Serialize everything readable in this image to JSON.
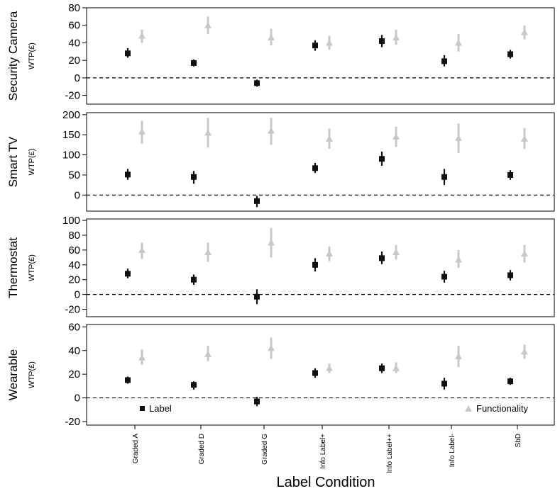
{
  "colors": {
    "label": "#111111",
    "functionality": "#c8c8c8"
  },
  "chart_data": {
    "type": "scatter",
    "xlabel": "Label Condition",
    "categories": [
      "Graded A",
      "Graded D",
      "Graded G",
      "Info Label+",
      "Info Label++",
      "Info Label-",
      "SbD"
    ],
    "legend": {
      "placement": "bottom",
      "items": [
        "Label",
        "Functionality"
      ]
    },
    "panels": [
      {
        "name": "Security Camera",
        "ylabel": "WTP(£)",
        "ylim": [
          -30,
          80
        ],
        "yticks": [
          -20,
          0,
          20,
          40,
          60,
          80
        ],
        "series": [
          {
            "name": "Label",
            "values": [
              28,
              17,
              -6,
              37,
              42,
              19,
              27
            ],
            "lower": [
              23,
              13,
              -10,
              31,
              35,
              13,
              22
            ],
            "upper": [
              34,
              21,
              -2,
              43,
              49,
              26,
              32
            ]
          },
          {
            "name": "Functionality",
            "values": [
              48,
              60,
              46,
              40,
              46,
              40,
              52
            ],
            "lower": [
              40,
              50,
              37,
              32,
              38,
              30,
              44
            ],
            "upper": [
              55,
              70,
              56,
              48,
              55,
              50,
              60
            ]
          }
        ]
      },
      {
        "name": "Smart TV",
        "ylabel": "WTP(£)",
        "ylim": [
          -40,
          205
        ],
        "yticks": [
          0,
          50,
          100,
          150,
          200
        ],
        "series": [
          {
            "name": "Label",
            "values": [
              51,
              45,
              -15,
              67,
              90,
              45,
              50
            ],
            "lower": [
              38,
              28,
              -30,
              55,
              73,
              25,
              38
            ],
            "upper": [
              65,
              60,
              -2,
              80,
              108,
              65,
              62
            ]
          },
          {
            "name": "Functionality",
            "values": [
              158,
              155,
              160,
              140,
              145,
              142,
              140
            ],
            "lower": [
              127,
              118,
              125,
              115,
              120,
              105,
              115
            ],
            "upper": [
              185,
              192,
              192,
              165,
              170,
              178,
              167
            ]
          }
        ]
      },
      {
        "name": "Thermostat",
        "ylabel": "WTP(£)",
        "ylim": [
          -30,
          102
        ],
        "yticks": [
          -20,
          0,
          20,
          40,
          60,
          80,
          100
        ],
        "series": [
          {
            "name": "Label",
            "values": [
              28,
              20,
              -3,
              40,
              49,
              24,
              26
            ],
            "lower": [
              22,
              13,
              -13,
              31,
              41,
              16,
              19
            ],
            "upper": [
              35,
              27,
              7,
              49,
              58,
              32,
              33
            ]
          },
          {
            "name": "Functionality",
            "values": [
              60,
              57,
              70,
              55,
              57,
              47,
              55
            ],
            "lower": [
              48,
              44,
              50,
              45,
              47,
              36,
              43
            ],
            "upper": [
              70,
              70,
              90,
              65,
              67,
              60,
              67
            ]
          }
        ]
      },
      {
        "name": "Wearable",
        "ylabel": "WTP(£)",
        "ylim": [
          -23,
          62
        ],
        "yticks": [
          -20,
          0,
          20,
          40,
          60
        ],
        "series": [
          {
            "name": "Label",
            "values": [
              15,
              11,
              -3,
              21,
              25,
              12,
              14
            ],
            "lower": [
              12,
              7,
              -7,
              17,
              21,
              7,
              11
            ],
            "upper": [
              18,
              14,
              1,
              25,
              29,
              17,
              17
            ]
          },
          {
            "name": "Functionality",
            "values": [
              34,
              37,
              42,
              25,
              25,
              35,
              39
            ],
            "lower": [
              28,
              31,
              33,
              21,
              21,
              26,
              33
            ],
            "upper": [
              41,
              44,
              51,
              29,
              30,
              44,
              45
            ]
          }
        ]
      }
    ]
  }
}
